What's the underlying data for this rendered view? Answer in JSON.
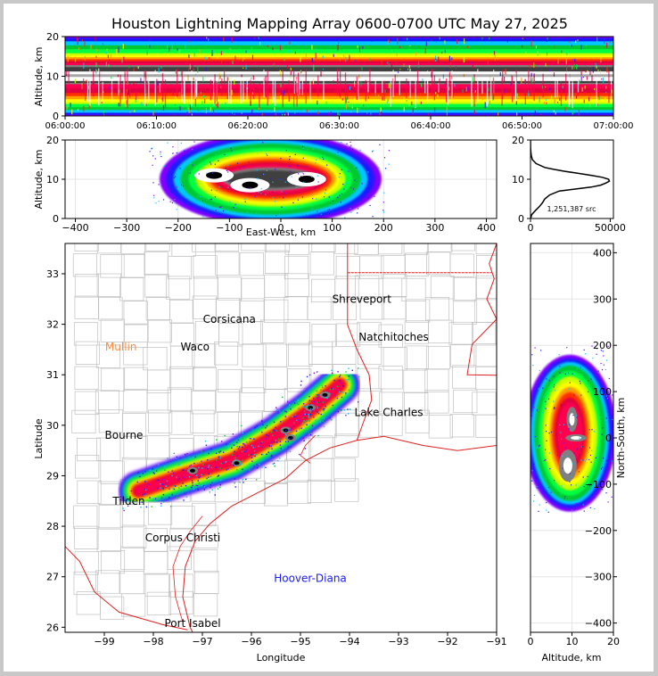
{
  "title": "Houston Lightning Mapping Array 0600-0700 UTC May 27, 2025",
  "colors": {
    "frame": "#c8c8c8",
    "state_borders": "#e02020",
    "county_lines": "#c0c0c0",
    "city_default": "#000000",
    "city_mullin": "#ff8c40",
    "city_hoover": "#1a1aff"
  },
  "colormap": [
    "#8000ff",
    "#1a1aff",
    "#00c8ff",
    "#00c830",
    "#00ff40",
    "#c8ff00",
    "#ffff00",
    "#ffa000",
    "#ff3000",
    "#e00040",
    "#ff0050",
    "#808080",
    "#404040",
    "#ffffff",
    "#000000"
  ],
  "chart_data": [
    {
      "id": "time_altitude",
      "type": "heatmap",
      "title": "",
      "xlabel": "",
      "ylabel": "Altitude, km",
      "xlim": [
        "06:00:00",
        "07:00:00"
      ],
      "ylim": [
        0,
        20
      ],
      "x_ticks": [
        "06:00:00",
        "06:10:00",
        "06:20:00",
        "06:30:00",
        "06:40:00",
        "06:50:00",
        "07:00:00"
      ],
      "y_ticks": [
        "0",
        "10",
        "20"
      ],
      "peak_altitude_km": 10,
      "source_altitude_range_km": [
        0.5,
        19.5
      ]
    },
    {
      "id": "ew_altitude",
      "type": "heatmap",
      "xlabel": "East-West, km",
      "ylabel": "Altitude, km",
      "xlim": [
        -420,
        420
      ],
      "ylim": [
        0,
        20
      ],
      "x_ticks": [
        "−400",
        "−300",
        "−200",
        "−100",
        "0",
        "100",
        "200",
        "300",
        "400"
      ],
      "y_ticks": [
        "0",
        "10",
        "20"
      ],
      "grid": true
    },
    {
      "id": "altitude_histogram",
      "type": "line",
      "xlabel": "",
      "ylabel": "",
      "xlim": [
        0,
        52000
      ],
      "ylim": [
        0,
        20
      ],
      "x_ticks": [
        "0",
        "50000"
      ],
      "y_ticks": [
        "0",
        "10",
        "20"
      ],
      "annotation": "1,251,387 src",
      "points": [
        {
          "alt": 0.0,
          "count": 100
        },
        {
          "alt": 1.0,
          "count": 800
        },
        {
          "alt": 2.0,
          "count": 3000
        },
        {
          "alt": 3.0,
          "count": 5500
        },
        {
          "alt": 4.0,
          "count": 7500
        },
        {
          "alt": 5.0,
          "count": 9000
        },
        {
          "alt": 6.0,
          "count": 12000
        },
        {
          "alt": 7.0,
          "count": 18000
        },
        {
          "alt": 7.5,
          "count": 28000
        },
        {
          "alt": 8.0,
          "count": 38000
        },
        {
          "alt": 8.5,
          "count": 44000
        },
        {
          "alt": 9.0,
          "count": 47000
        },
        {
          "alt": 9.5,
          "count": 49500
        },
        {
          "alt": 10.0,
          "count": 49000
        },
        {
          "alt": 10.5,
          "count": 45000
        },
        {
          "alt": 11.0,
          "count": 38000
        },
        {
          "alt": 11.5,
          "count": 30000
        },
        {
          "alt": 12.0,
          "count": 22000
        },
        {
          "alt": 12.5,
          "count": 15000
        },
        {
          "alt": 13.0,
          "count": 9000
        },
        {
          "alt": 14.0,
          "count": 3500
        },
        {
          "alt": 15.0,
          "count": 1200
        },
        {
          "alt": 16.0,
          "count": 500
        },
        {
          "alt": 17.0,
          "count": 200
        },
        {
          "alt": 18.0,
          "count": 80
        },
        {
          "alt": 20.0,
          "count": 0
        }
      ]
    },
    {
      "id": "plan_view",
      "type": "heatmap",
      "xlabel": "Longitude",
      "ylabel": "Latitude",
      "xlim": [
        -99.8,
        -91.0
      ],
      "ylim": [
        25.9,
        33.6
      ],
      "x_ticks": [
        -99,
        -98,
        -97,
        -96,
        -95,
        -94,
        -93,
        -92,
        -91
      ],
      "x_tick_labels": [
        "−99",
        "−98",
        "−97",
        "−96",
        "−95",
        "−94",
        "−93",
        "−92",
        "−91"
      ],
      "y_ticks": [
        26,
        27,
        28,
        29,
        30,
        31,
        32,
        33
      ],
      "y_tick_labels": [
        "26",
        "27",
        "28",
        "29",
        "30",
        "31",
        "32",
        "33"
      ],
      "cities": [
        {
          "name": "Shreveport",
          "lon": -93.75,
          "lat": 32.5,
          "color": "#000000"
        },
        {
          "name": "Corsicana",
          "lon": -96.45,
          "lat": 32.1,
          "color": "#000000"
        },
        {
          "name": "Natchitoches",
          "lon": -93.1,
          "lat": 31.75,
          "color": "#000000"
        },
        {
          "name": "Mullin",
          "lon": -98.66,
          "lat": 31.55,
          "color": "#ff8c40"
        },
        {
          "name": "Waco",
          "lon": -97.15,
          "lat": 31.55,
          "color": "#000000"
        },
        {
          "name": "Lake Charles",
          "lon": -93.2,
          "lat": 30.25,
          "color": "#000000"
        },
        {
          "name": "Bourne",
          "lon": -98.6,
          "lat": 29.8,
          "color": "#000000"
        },
        {
          "name": "Tilden",
          "lon": -98.5,
          "lat": 28.5,
          "color": "#000000"
        },
        {
          "name": "Corpus Christi",
          "lon": -97.4,
          "lat": 27.77,
          "color": "#000000"
        },
        {
          "name": "Hoover-Diana",
          "lon": -94.8,
          "lat": 26.97,
          "color": "#1a1aff"
        },
        {
          "name": "Port Isabel",
          "lon": -97.2,
          "lat": 26.08,
          "color": "#000000"
        }
      ],
      "storm_axis": [
        [
          -98.3,
          28.7
        ],
        [
          -97.4,
          29.0
        ],
        [
          -96.4,
          29.3
        ],
        [
          -95.5,
          29.8
        ],
        [
          -94.8,
          30.3
        ],
        [
          -94.2,
          30.8
        ]
      ]
    },
    {
      "id": "altitude_ns",
      "type": "heatmap",
      "xlabel": "Altitude, km",
      "ylabel": "North-South, km",
      "xlim": [
        0,
        20
      ],
      "ylim": [
        -420,
        420
      ],
      "x_ticks": [
        "0",
        "10",
        "20"
      ],
      "y_ticks": [
        "−400",
        "−300",
        "−200",
        "−100",
        "0",
        "100",
        "200",
        "300",
        "400"
      ],
      "grid": true
    }
  ]
}
